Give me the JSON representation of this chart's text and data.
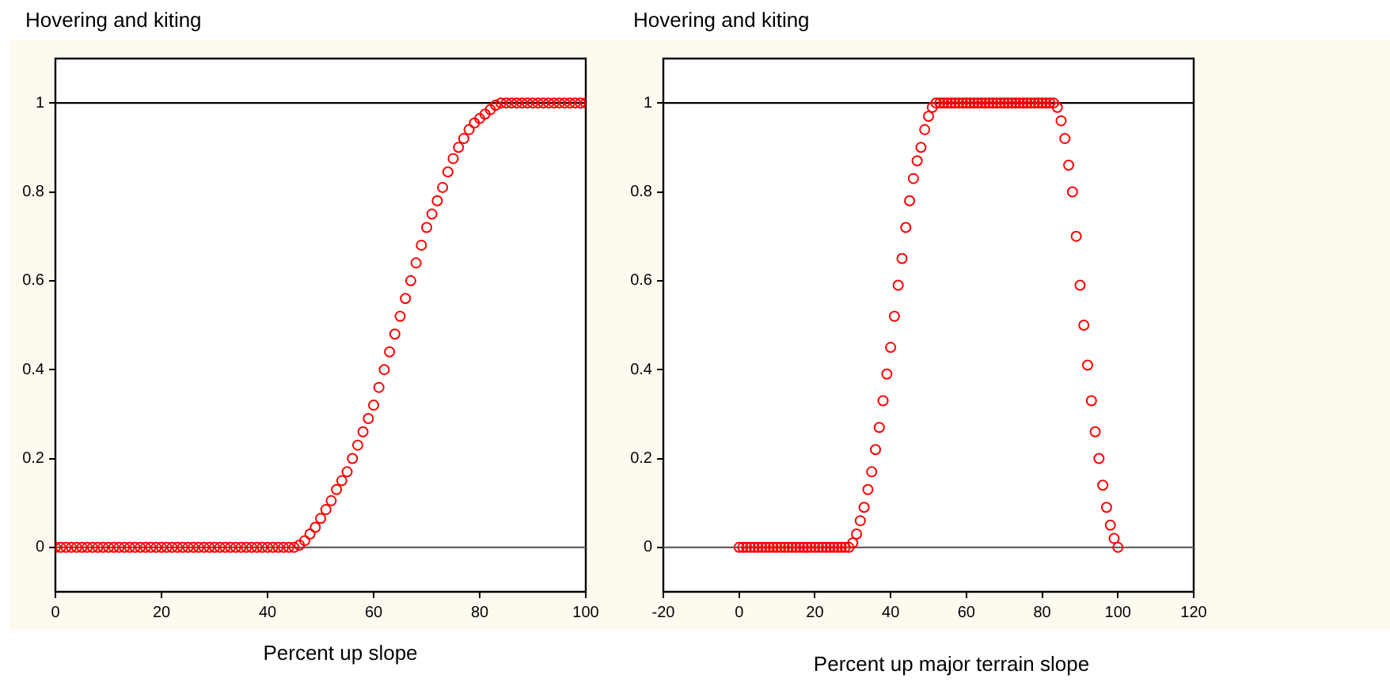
{
  "chart_data": [
    {
      "type": "scatter",
      "title": "Hovering and kiting",
      "xlabel": "Percent up slope",
      "xlim": [
        0,
        100
      ],
      "xticks": [
        0,
        20,
        40,
        60,
        80,
        100
      ],
      "ylim": [
        -0.1,
        1.1
      ],
      "yticks": [
        0,
        0.2,
        0.4,
        0.6,
        0.8,
        1
      ],
      "marker": "circle",
      "grid": false,
      "ref_lines": [
        {
          "axis": "y",
          "value": 0,
          "color": "#606060"
        },
        {
          "axis": "y",
          "value": 1,
          "color": "#000000"
        }
      ],
      "series": [
        {
          "color": "#ff0000",
          "x": [
            0,
            1,
            2,
            3,
            4,
            5,
            6,
            7,
            8,
            9,
            10,
            11,
            12,
            13,
            14,
            15,
            16,
            17,
            18,
            19,
            20,
            21,
            22,
            23,
            24,
            25,
            26,
            27,
            28,
            29,
            30,
            31,
            32,
            33,
            34,
            35,
            36,
            37,
            38,
            39,
            40,
            41,
            42,
            43,
            44,
            45,
            46,
            47,
            48,
            49,
            50,
            51,
            52,
            53,
            54,
            55,
            56,
            57,
            58,
            59,
            60,
            61,
            62,
            63,
            64,
            65,
            66,
            67,
            68,
            69,
            70,
            71,
            72,
            73,
            74,
            75,
            76,
            77,
            78,
            79,
            80,
            81,
            82,
            83,
            84,
            85,
            86,
            87,
            88,
            89,
            90,
            91,
            92,
            93,
            94,
            95,
            96,
            97,
            98,
            99,
            100
          ],
          "values": [
            0,
            0,
            0,
            0,
            0,
            0,
            0,
            0,
            0,
            0,
            0,
            0,
            0,
            0,
            0,
            0,
            0,
            0,
            0,
            0,
            0,
            0,
            0,
            0,
            0,
            0,
            0,
            0,
            0,
            0,
            0,
            0,
            0,
            0,
            0,
            0,
            0,
            0,
            0,
            0,
            0,
            0,
            0,
            0,
            0,
            0,
            0.005,
            0.015,
            0.03,
            0.045,
            0.065,
            0.085,
            0.105,
            0.13,
            0.15,
            0.17,
            0.2,
            0.23,
            0.26,
            0.29,
            0.32,
            0.36,
            0.4,
            0.44,
            0.48,
            0.52,
            0.56,
            0.6,
            0.64,
            0.68,
            0.72,
            0.75,
            0.78,
            0.81,
            0.845,
            0.875,
            0.9,
            0.92,
            0.94,
            0.955,
            0.965,
            0.975,
            0.985,
            0.995,
            1,
            1,
            1,
            1,
            1,
            1,
            1,
            1,
            1,
            1,
            1,
            1,
            1,
            1,
            1,
            1,
            1
          ]
        }
      ]
    },
    {
      "type": "scatter",
      "title": "Hovering and kiting",
      "xlabel": "Percent up major terrain slope",
      "xlim": [
        -20,
        120
      ],
      "xticks": [
        -20,
        0,
        20,
        40,
        60,
        80,
        100,
        120
      ],
      "ylim": [
        -0.1,
        1.1
      ],
      "yticks": [
        0,
        0.2,
        0.4,
        0.6,
        0.8,
        1
      ],
      "marker": "circle",
      "grid": false,
      "ref_lines": [
        {
          "axis": "y",
          "value": 0,
          "color": "#606060"
        },
        {
          "axis": "y",
          "value": 1,
          "color": "#000000"
        }
      ],
      "series": [
        {
          "color": "#ff0000",
          "x": [
            0,
            1,
            2,
            3,
            4,
            5,
            6,
            7,
            8,
            9,
            10,
            11,
            12,
            13,
            14,
            15,
            16,
            17,
            18,
            19,
            20,
            21,
            22,
            23,
            24,
            25,
            26,
            27,
            28,
            29,
            30,
            31,
            32,
            33,
            34,
            35,
            36,
            37,
            38,
            39,
            40,
            41,
            42,
            43,
            44,
            45,
            46,
            47,
            48,
            49,
            50,
            51,
            52,
            53,
            54,
            55,
            56,
            57,
            58,
            59,
            60,
            61,
            62,
            63,
            64,
            65,
            66,
            67,
            68,
            69,
            70,
            71,
            72,
            73,
            74,
            75,
            76,
            77,
            78,
            79,
            80,
            81,
            82,
            83,
            84,
            85,
            86,
            87,
            88,
            89,
            90,
            91,
            92,
            93,
            94,
            95,
            96,
            97,
            98,
            99,
            100
          ],
          "values": [
            0,
            0,
            0,
            0,
            0,
            0,
            0,
            0,
            0,
            0,
            0,
            0,
            0,
            0,
            0,
            0,
            0,
            0,
            0,
            0,
            0,
            0,
            0,
            0,
            0,
            0,
            0,
            0,
            0,
            0,
            0.01,
            0.03,
            0.06,
            0.09,
            0.13,
            0.17,
            0.22,
            0.27,
            0.33,
            0.39,
            0.45,
            0.52,
            0.59,
            0.65,
            0.72,
            0.78,
            0.83,
            0.87,
            0.9,
            0.94,
            0.97,
            0.99,
            1,
            1,
            1,
            1,
            1,
            1,
            1,
            1,
            1,
            1,
            1,
            1,
            1,
            1,
            1,
            1,
            1,
            1,
            1,
            1,
            1,
            1,
            1,
            1,
            1,
            1,
            1,
            1,
            1,
            1,
            1,
            1,
            0.99,
            0.96,
            0.92,
            0.86,
            0.8,
            0.7,
            0.59,
            0.5,
            0.41,
            0.33,
            0.26,
            0.2,
            0.14,
            0.09,
            0.05,
            0.02,
            0
          ]
        }
      ]
    }
  ]
}
